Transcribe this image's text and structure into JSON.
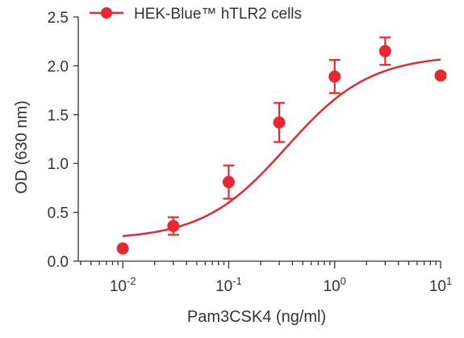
{
  "chart_data": {
    "type": "scatter",
    "title": "",
    "xlabel": "Pam3CSK4 (ng/ml)",
    "ylabel": "OD (630 nm)",
    "xscale": "log",
    "xlim": [
      0.0038,
      10
    ],
    "ylim": [
      0,
      2.5
    ],
    "xticks": [
      {
        "value": 0.01,
        "base": "10",
        "exp": "-2"
      },
      {
        "value": 0.1,
        "base": "10",
        "exp": "-1"
      },
      {
        "value": 1,
        "base": "10",
        "exp": "0"
      },
      {
        "value": 10,
        "base": "10",
        "exp": "1"
      }
    ],
    "yticks": [
      "0.0",
      "0.5",
      "1.0",
      "1.5",
      "2.0",
      "2.5"
    ],
    "grid": false,
    "legend": "top",
    "color": "#e8282e",
    "series": [
      {
        "name": "HEK-Blue™ hTLR2 cells",
        "points": [
          {
            "x": 0.01,
            "y": 0.13,
            "err": 0
          },
          {
            "x": 0.03,
            "y": 0.36,
            "err": 0.09
          },
          {
            "x": 0.1,
            "y": 0.81,
            "err": 0.17
          },
          {
            "x": 0.3,
            "y": 1.42,
            "err": 0.2
          },
          {
            "x": 1,
            "y": 1.89,
            "err": 0.17
          },
          {
            "x": 3,
            "y": 2.15,
            "err": 0.14
          },
          {
            "x": 10,
            "y": 1.9,
            "err": 0
          }
        ],
        "fit": {
          "bottom": 0.22,
          "top": 2.11,
          "ec50": 0.35,
          "hill": 1.1
        }
      }
    ]
  }
}
